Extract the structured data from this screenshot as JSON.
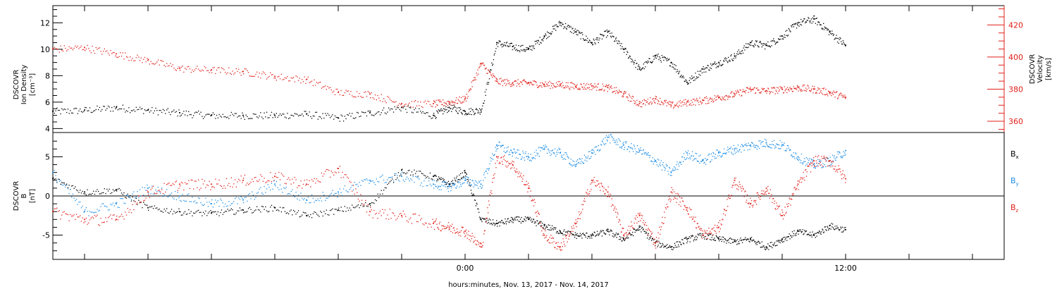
{
  "colors": {
    "density": "#000000",
    "velocity": "#e0201a",
    "bx": "#000000",
    "by": "#1e8ee6",
    "bz": "#e0201a",
    "frame": "#000000"
  },
  "top_panel": {
    "left_label": [
      "DSCOVR",
      "Ion Density",
      "[cm⁻³]"
    ],
    "right_label": [
      "DSCOVR",
      "Velocity",
      "[km/s]"
    ]
  },
  "bottom_panel": {
    "left_label": [
      "DSCOVR",
      "B",
      "[nT]"
    ],
    "legend": [
      "Bx",
      "By",
      "Bz"
    ]
  },
  "x_axis": {
    "label": "hours:minutes, Nov. 13, 2017 - Nov. 14, 2017",
    "tick_labels": [
      "0:00",
      "12:00"
    ]
  },
  "chart_data": [
    {
      "type": "scatter",
      "title": "",
      "xlabel": "hours:minutes, Nov. 13, 2017 - Nov. 14, 2017",
      "xlim": [
        "2017-11-13 11:00",
        "2017-11-14 17:00"
      ],
      "x_tick_labels": [
        "0:00",
        "12:00"
      ],
      "ylabel": "DSCOVR Ion Density [cm⁻³]",
      "ylim": [
        3.7,
        13.3
      ],
      "y_ticks": [
        4,
        6,
        8,
        10,
        12
      ],
      "y2label": "DSCOVR Velocity [km/s]",
      "y2lim": [
        353,
        432
      ],
      "y2_ticks": [
        360,
        380,
        400,
        420
      ],
      "series": [
        {
          "name": "Ion Density",
          "axis": "left",
          "x_hours": [
            -13,
            -12,
            -11,
            -10,
            -9,
            -8,
            -7,
            -6,
            -5,
            -4,
            -3,
            -2,
            -1,
            -0.5,
            0,
            0.5,
            1,
            1.5,
            2,
            2.5,
            3,
            3.5,
            4,
            4.5,
            5,
            5.5,
            6,
            6.5,
            7,
            7.5,
            8,
            8.5,
            9,
            9.5,
            10,
            10.5,
            11,
            11.5,
            12
          ],
          "values": [
            5.3,
            5.4,
            5.6,
            5.4,
            5.2,
            5.0,
            5.0,
            5.0,
            5.1,
            4.8,
            5.2,
            5.6,
            5.0,
            5.6,
            5.3,
            5.4,
            10.5,
            10.2,
            10.0,
            11.0,
            12.0,
            11.3,
            10.5,
            11.3,
            10.0,
            8.5,
            9.5,
            9.0,
            7.5,
            8.5,
            9.0,
            9.5,
            10.5,
            10.3,
            11.0,
            12.0,
            12.3,
            11.3,
            10.3
          ]
        },
        {
          "name": "Velocity",
          "axis": "right",
          "x_hours": [
            -13,
            -12,
            -11,
            -10,
            -9,
            -8,
            -7,
            -6,
            -5,
            -4,
            -3,
            -2,
            -1,
            -0.5,
            0,
            0.5,
            1,
            1.5,
            2,
            2.5,
            3,
            3.5,
            4,
            4.5,
            5,
            5.5,
            6,
            6.5,
            7,
            7.5,
            8,
            8.5,
            9,
            9.5,
            10,
            10.5,
            11,
            11.5,
            12
          ],
          "values": [
            405,
            406,
            402,
            398,
            393,
            392,
            391,
            388,
            386,
            378,
            377,
            371,
            371,
            372,
            374,
            396,
            385,
            384,
            384,
            383,
            383,
            382,
            382,
            381,
            377,
            371,
            374,
            370,
            372,
            373,
            375,
            377,
            380,
            379,
            380,
            381,
            380,
            378,
            375
          ]
        }
      ]
    },
    {
      "type": "scatter",
      "title": "",
      "xlabel": "hours:minutes, Nov. 13, 2017 - Nov. 14, 2017",
      "xlim": [
        "2017-11-13 11:00",
        "2017-11-14 17:00"
      ],
      "x_tick_labels": [
        "0:00",
        "12:00"
      ],
      "ylabel": "DSCOVR B [nT]",
      "ylim": [
        -8.1,
        8.1
      ],
      "y_ticks": [
        -5,
        0,
        5
      ],
      "zero_line": true,
      "series": [
        {
          "name": "Bx",
          "x_hours": [
            -13,
            -12,
            -11,
            -10,
            -9,
            -8,
            -7,
            -6,
            -5,
            -4,
            -3,
            -2,
            -1,
            -0.5,
            0,
            0.5,
            1,
            1.5,
            2,
            2.5,
            3,
            3.5,
            4,
            4.5,
            5,
            5.5,
            6,
            6.5,
            7,
            7.5,
            8,
            8.5,
            9,
            9.5,
            10,
            10.5,
            11,
            11.5,
            12
          ],
          "values": [
            2.2,
            0.5,
            0.8,
            -1.5,
            -2.0,
            -2.2,
            -1.8,
            -1.5,
            -2.5,
            -1.8,
            -1.0,
            3.3,
            2.5,
            1.5,
            3.0,
            -3.0,
            -3.5,
            -3.0,
            -3.0,
            -3.8,
            -4.5,
            -5.0,
            -5.0,
            -4.5,
            -5.5,
            -4.0,
            -6.0,
            -6.5,
            -5.5,
            -5.0,
            -5.5,
            -5.8,
            -5.5,
            -6.5,
            -5.5,
            -4.5,
            -5.0,
            -3.8,
            -4.3
          ]
        },
        {
          "name": "By",
          "x_hours": [
            -13,
            -12,
            -11,
            -10,
            -9,
            -8,
            -7,
            -6,
            -5,
            -4,
            -3,
            -2,
            -1,
            -0.5,
            0,
            0.5,
            1,
            1.5,
            2,
            2.5,
            3,
            3.5,
            4,
            4.5,
            5,
            5.5,
            6,
            6.5,
            7,
            7.5,
            8,
            8.5,
            9,
            9.5,
            10,
            10.5,
            11,
            11.5,
            12
          ],
          "values": [
            3.0,
            -2.0,
            -1.0,
            1.0,
            0.0,
            -1.0,
            -0.5,
            1.5,
            -0.5,
            0.5,
            2.0,
            2.5,
            1.5,
            1.2,
            2.0,
            1.5,
            6.5,
            5.5,
            5.0,
            6.0,
            5.5,
            4.0,
            5.5,
            7.5,
            6.5,
            5.8,
            4.5,
            3.0,
            5.5,
            4.5,
            5.5,
            6.0,
            6.5,
            6.8,
            6.5,
            5.0,
            4.0,
            4.5,
            5.8
          ]
        },
        {
          "name": "Bz",
          "x_hours": [
            -13,
            -12,
            -11,
            -10,
            -9,
            -8,
            -7,
            -6,
            -5,
            -4,
            -3,
            -2,
            -1,
            -0.5,
            0,
            0.5,
            1,
            1.5,
            2,
            2.5,
            3,
            3.5,
            4,
            4.5,
            5,
            5.5,
            6,
            6.5,
            7,
            7.5,
            8,
            8.5,
            9,
            9.5,
            10,
            10.5,
            11,
            11.5,
            12
          ],
          "values": [
            -2.0,
            -3.0,
            -3.0,
            0.5,
            1.5,
            1.5,
            2.0,
            2.5,
            1.5,
            3.5,
            -2.0,
            -2.5,
            -3.5,
            -4.0,
            -4.5,
            -6.5,
            5.0,
            4.0,
            1.0,
            -5.0,
            -6.5,
            -3.5,
            2.0,
            0.5,
            -5.0,
            -2.5,
            -6.0,
            0.5,
            -1.5,
            -5.0,
            -4.0,
            2.0,
            -1.0,
            1.0,
            -2.5,
            1.5,
            4.5,
            4.5,
            2.2
          ]
        }
      ]
    }
  ]
}
